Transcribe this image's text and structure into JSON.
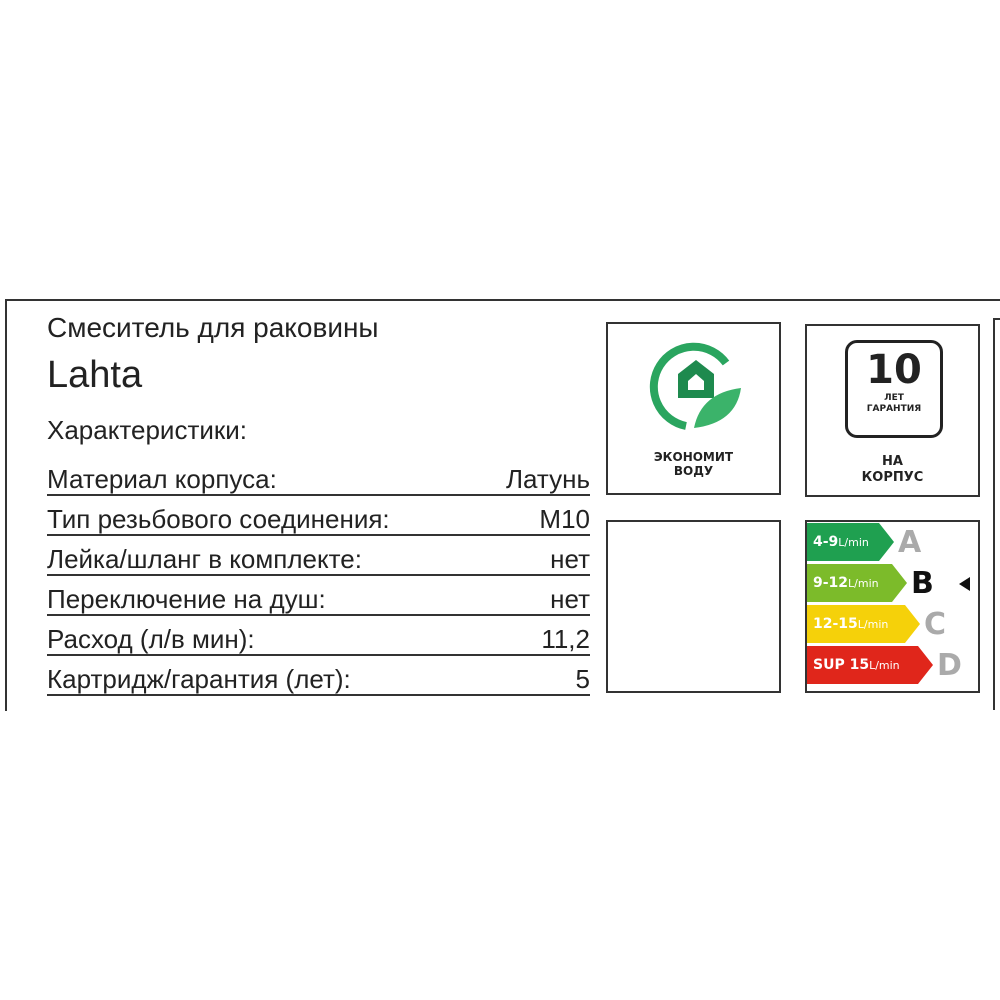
{
  "product": {
    "type": "Смеситель для раковины",
    "name": "Lahta",
    "section": "Характеристики:"
  },
  "specs": [
    {
      "label": "Материал корпуса:",
      "value": "Латунь"
    },
    {
      "label": "Тип резьбового соединения:",
      "value": "M10"
    },
    {
      "label": "Лейка/шланг в комплекте:",
      "value": "нет"
    },
    {
      "label": "Переключение на душ:",
      "value": "нет"
    },
    {
      "label": "Расход (л/в мин):",
      "value": "11,2"
    },
    {
      "label": "Картридж/гарантия (лет):",
      "value": "5"
    }
  ],
  "eco_badge": {
    "line1": "ЭКОНОМИТ",
    "line2": "ВОДУ",
    "icon": "eco-house-leaf-icon",
    "color": "#2aa55f"
  },
  "warranty_badge": {
    "years": "10",
    "line1": "ЛЕТ",
    "line2": "ГАРАНТИЯ",
    "cap1": "НА",
    "cap2": "КОРПУС"
  },
  "water_class": {
    "selected": "B",
    "classes": [
      {
        "range": "4-9",
        "unit": "L/min",
        "letter": "A",
        "color": "#1fa050"
      },
      {
        "range": "9-12",
        "unit": "L/min",
        "letter": "B",
        "color": "#7cbb2a"
      },
      {
        "range": "12-15",
        "unit": "L/min",
        "letter": "C",
        "color": "#f5d10a"
      },
      {
        "range": "SUP 15",
        "unit": "L/min",
        "letter": "D",
        "color": "#e0261b"
      }
    ]
  }
}
